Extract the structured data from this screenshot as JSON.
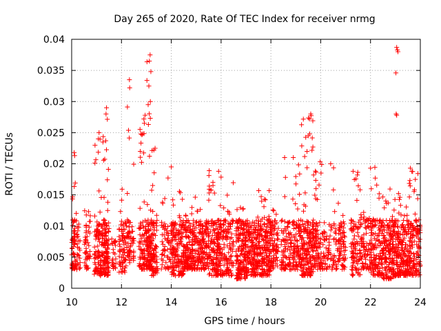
{
  "chart_data": {
    "type": "scatter",
    "title": "Day 265 of 2020, Rate Of TEC Index for receiver nrmg",
    "xlabel": "GPS time / hours",
    "ylabel": "ROTI / TECUs",
    "xlim": [
      10,
      24
    ],
    "ylim": [
      0,
      0.04
    ],
    "x_ticks": [
      "10",
      "12",
      "14",
      "16",
      "18",
      "20",
      "22",
      "24"
    ],
    "y_ticks": [
      "0",
      "0.005",
      "0.01",
      "0.015",
      "0.02",
      "0.025",
      "0.03",
      "0.035",
      "0.04"
    ],
    "grid": true,
    "marker": "plus",
    "series_color": "#ff0000",
    "point_clusters": [
      {
        "x": [
          10.0,
          10.15
        ],
        "y": [
          0.003,
          0.022
        ],
        "n": 60
      },
      {
        "x": [
          10.15,
          10.35
        ],
        "y": [
          0.003,
          0.0135
        ],
        "n": 30
      },
      {
        "x": [
          10.5,
          10.75
        ],
        "y": [
          0.003,
          0.013
        ],
        "n": 50
      },
      {
        "x": [
          10.9,
          11.25
        ],
        "y": [
          0.002,
          0.025
        ],
        "n": 110
      },
      {
        "x": [
          11.25,
          11.5
        ],
        "y": [
          0.002,
          0.029
        ],
        "n": 120
      },
      {
        "x": [
          11.6,
          11.8
        ],
        "y": [
          0.003,
          0.008
        ],
        "n": 25
      },
      {
        "x": [
          11.9,
          12.2
        ],
        "y": [
          0.0025,
          0.017
        ],
        "n": 70
      },
      {
        "x": [
          12.2,
          12.5
        ],
        "y": [
          0.004,
          0.0335
        ],
        "n": 60
      },
      {
        "x": [
          12.7,
          13.0
        ],
        "y": [
          0.003,
          0.027
        ],
        "n": 80
      },
      {
        "x": [
          13.0,
          13.2
        ],
        "y": [
          0.003,
          0.0375
        ],
        "n": 100
      },
      {
        "x": [
          13.2,
          13.45
        ],
        "y": [
          0.002,
          0.023
        ],
        "n": 80
      },
      {
        "x": [
          13.6,
          14.0
        ],
        "y": [
          0.003,
          0.02
        ],
        "n": 60
      },
      {
        "x": [
          14.0,
          14.5
        ],
        "y": [
          0.002,
          0.016
        ],
        "n": 160
      },
      {
        "x": [
          14.5,
          15.0
        ],
        "y": [
          0.003,
          0.015
        ],
        "n": 160
      },
      {
        "x": [
          15.0,
          15.5
        ],
        "y": [
          0.003,
          0.013
        ],
        "n": 140
      },
      {
        "x": [
          15.5,
          16.0
        ],
        "y": [
          0.002,
          0.019
        ],
        "n": 170
      },
      {
        "x": [
          16.0,
          16.5
        ],
        "y": [
          0.002,
          0.017
        ],
        "n": 120
      },
      {
        "x": [
          16.6,
          17.0
        ],
        "y": [
          0.0015,
          0.013
        ],
        "n": 160
      },
      {
        "x": [
          17.0,
          17.5
        ],
        "y": [
          0.002,
          0.0125
        ],
        "n": 180
      },
      {
        "x": [
          17.5,
          18.0
        ],
        "y": [
          0.002,
          0.016
        ],
        "n": 180
      },
      {
        "x": [
          18.0,
          18.3
        ],
        "y": [
          0.003,
          0.016
        ],
        "n": 70
      },
      {
        "x": [
          18.4,
          18.8
        ],
        "y": [
          0.003,
          0.021
        ],
        "n": 80
      },
      {
        "x": [
          18.8,
          19.2
        ],
        "y": [
          0.003,
          0.021
        ],
        "n": 100
      },
      {
        "x": [
          19.2,
          19.7
        ],
        "y": [
          0.002,
          0.028
        ],
        "n": 170
      },
      {
        "x": [
          19.7,
          20.2
        ],
        "y": [
          0.003,
          0.021
        ],
        "n": 110
      },
      {
        "x": [
          20.2,
          20.7
        ],
        "y": [
          0.003,
          0.02
        ],
        "n": 60
      },
      {
        "x": [
          20.7,
          21.0
        ],
        "y": [
          0.003,
          0.0155
        ],
        "n": 70
      },
      {
        "x": [
          21.2,
          21.6
        ],
        "y": [
          0.002,
          0.019
        ],
        "n": 90
      },
      {
        "x": [
          21.6,
          22.0
        ],
        "y": [
          0.003,
          0.013
        ],
        "n": 80
      },
      {
        "x": [
          22.0,
          22.5
        ],
        "y": [
          0.002,
          0.0195
        ],
        "n": 150
      },
      {
        "x": [
          22.5,
          23.0
        ],
        "y": [
          0.0015,
          0.017
        ],
        "n": 180
      },
      {
        "x": [
          23.0,
          23.5
        ],
        "y": [
          0.002,
          0.016
        ],
        "n": 170
      },
      {
        "x": [
          23.5,
          24.0
        ],
        "y": [
          0.002,
          0.0195
        ],
        "n": 150
      }
    ],
    "peak_points": [
      {
        "x": 13.15,
        "y": 0.0375
      },
      {
        "x": 13.12,
        "y": 0.0365
      },
      {
        "x": 13.18,
        "y": 0.0348
      },
      {
        "x": 13.1,
        "y": 0.0325
      },
      {
        "x": 13.16,
        "y": 0.03
      },
      {
        "x": 12.95,
        "y": 0.0278
      },
      {
        "x": 12.32,
        "y": 0.0335
      },
      {
        "x": 12.33,
        "y": 0.0322
      },
      {
        "x": 12.9,
        "y": 0.0272
      },
      {
        "x": 12.85,
        "y": 0.0248
      },
      {
        "x": 11.4,
        "y": 0.029
      },
      {
        "x": 11.38,
        "y": 0.028
      },
      {
        "x": 11.1,
        "y": 0.025
      },
      {
        "x": 19.6,
        "y": 0.028
      },
      {
        "x": 19.55,
        "y": 0.0272
      },
      {
        "x": 19.5,
        "y": 0.0245
      },
      {
        "x": 23.05,
        "y": 0.0387
      },
      {
        "x": 23.08,
        "y": 0.0383
      },
      {
        "x": 23.1,
        "y": 0.038
      },
      {
        "x": 23.02,
        "y": 0.0346
      },
      {
        "x": 23.03,
        "y": 0.028
      },
      {
        "x": 23.05,
        "y": 0.0278
      },
      {
        "x": 10.1,
        "y": 0.0218
      },
      {
        "x": 10.12,
        "y": 0.0213
      },
      {
        "x": 13.35,
        "y": 0.0225
      },
      {
        "x": 13.3,
        "y": 0.0222
      },
      {
        "x": 14.0,
        "y": 0.0195
      },
      {
        "x": 15.9,
        "y": 0.0188
      },
      {
        "x": 18.55,
        "y": 0.021
      },
      {
        "x": 18.9,
        "y": 0.021
      },
      {
        "x": 19.45,
        "y": 0.022
      },
      {
        "x": 20.4,
        "y": 0.02
      },
      {
        "x": 21.3,
        "y": 0.0188
      },
      {
        "x": 22.0,
        "y": 0.0193
      },
      {
        "x": 23.6,
        "y": 0.0193
      },
      {
        "x": 23.8,
        "y": 0.0175
      }
    ]
  }
}
